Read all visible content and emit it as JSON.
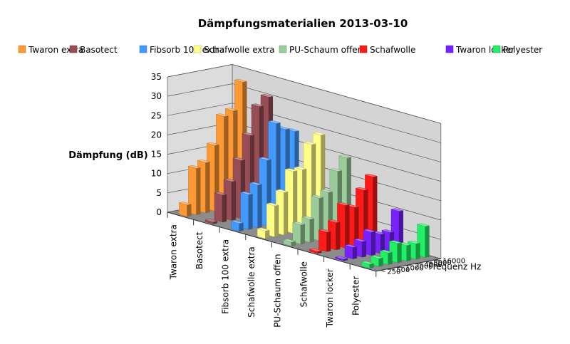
{
  "chart_data": {
    "type": "bar",
    "title": "Dämpfungsmaterialien 2013-03-10",
    "ylabel": "Dämpfung (dB)",
    "zlabel": "Frequenz Hz",
    "ylim": [
      0,
      35
    ],
    "yticks": [
      0,
      5,
      10,
      15,
      20,
      25,
      30,
      35
    ],
    "frequencies": [
      "250",
      "500",
      "1000",
      "2000",
      "4000",
      "8000",
      "16000"
    ],
    "legend_placement": "top",
    "grid": true,
    "series": [
      {
        "name": "Polyester",
        "color": "#22ee66",
        "values": [
          1,
          2,
          3,
          5,
          4,
          4,
          8
        ]
      },
      {
        "name": "Twaron locker",
        "color": "#7722ff",
        "values": [
          0,
          3,
          4,
          6,
          5,
          5,
          10
        ]
      },
      {
        "name": "Schafwolle",
        "color": "#ff1a1a",
        "values": [
          0.5,
          5,
          7,
          11,
          10,
          14,
          17
        ]
      },
      {
        "name": "PU-Schaum offen",
        "color": "#99cc99",
        "values": [
          1,
          5,
          6,
          11,
          12,
          17,
          20
        ]
      },
      {
        "name": "Schafwolle extra",
        "color": "#ffff88",
        "values": [
          2,
          8,
          11,
          16,
          16,
          22,
          24
        ]
      },
      {
        "name": "Fibsorb 100 extra",
        "color": "#4499ff",
        "values": [
          2,
          9,
          11,
          17,
          26,
          24,
          23
        ]
      },
      {
        "name": "Basotect",
        "color": "#994d55",
        "values": [
          0.5,
          7,
          10,
          15,
          21,
          28,
          30
        ]
      },
      {
        "name": "Twaron extra",
        "color": "#ff9933",
        "values": [
          3,
          12,
          13,
          17,
          24,
          25,
          32
        ]
      }
    ]
  }
}
